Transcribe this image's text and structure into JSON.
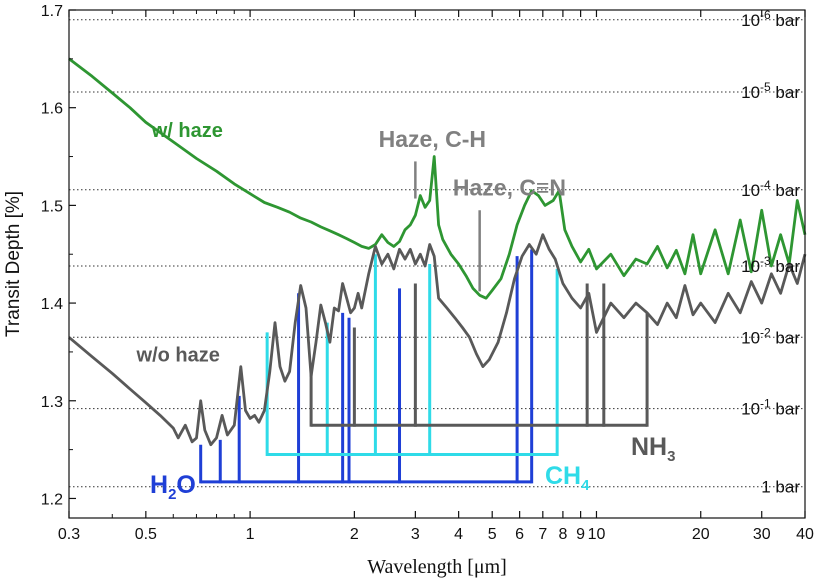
{
  "chart_data": {
    "type": "line",
    "xlabel": "Wavelength [μm]",
    "ylabel": "Transit Depth [%]",
    "xscale": "log",
    "xlim": [
      0.3,
      40
    ],
    "ylim": [
      1.18,
      1.7
    ],
    "grid": "dotted horizontal lines at pressure levels",
    "x_ticks": [
      {
        "v": 0.3,
        "label": "0.3"
      },
      {
        "v": 0.5,
        "label": "0.5"
      },
      {
        "v": 1,
        "label": "1"
      },
      {
        "v": 2,
        "label": "2"
      },
      {
        "v": 3,
        "label": "3"
      },
      {
        "v": 4,
        "label": "4"
      },
      {
        "v": 5,
        "label": "5"
      },
      {
        "v": 6,
        "label": "6"
      },
      {
        "v": 7,
        "label": "7"
      },
      {
        "v": 8,
        "label": "8"
      },
      {
        "v": 9,
        "label": "9"
      },
      {
        "v": 10,
        "label": "10"
      },
      {
        "v": 20,
        "label": "20"
      },
      {
        "v": 30,
        "label": "30"
      },
      {
        "v": 40,
        "label": "40"
      }
    ],
    "y_ticks": [
      {
        "v": 1.2,
        "label": "1.2"
      },
      {
        "v": 1.3,
        "label": "1.3"
      },
      {
        "v": 1.4,
        "label": "1.4"
      },
      {
        "v": 1.5,
        "label": "1.5"
      },
      {
        "v": 1.6,
        "label": "1.6"
      },
      {
        "v": 1.7,
        "label": "1.7"
      }
    ],
    "pressure_levels": [
      {
        "y": 1.212,
        "base": "1 bar",
        "exp": ""
      },
      {
        "y": 1.292,
        "base": "10",
        "exp": "-1",
        "unit": " bar"
      },
      {
        "y": 1.365,
        "base": "10",
        "exp": "-2",
        "unit": " bar"
      },
      {
        "y": 1.438,
        "base": "10",
        "exp": "-3",
        "unit": " bar"
      },
      {
        "y": 1.516,
        "base": "10",
        "exp": "-4",
        "unit": " bar"
      },
      {
        "y": 1.616,
        "base": "10",
        "exp": "-5",
        "unit": " bar"
      },
      {
        "y": 1.69,
        "base": "10",
        "exp": "-6",
        "unit": " bar"
      }
    ],
    "series": [
      {
        "name": "w/ haze",
        "color": "#2e9632",
        "points": [
          [
            0.3,
            1.65
          ],
          [
            0.35,
            1.632
          ],
          [
            0.4,
            1.615
          ],
          [
            0.45,
            1.6
          ],
          [
            0.5,
            1.585
          ],
          [
            0.6,
            1.565
          ],
          [
            0.7,
            1.548
          ],
          [
            0.8,
            1.535
          ],
          [
            0.9,
            1.522
          ],
          [
            1.0,
            1.512
          ],
          [
            1.1,
            1.503
          ],
          [
            1.2,
            1.498
          ],
          [
            1.3,
            1.493
          ],
          [
            1.4,
            1.487
          ],
          [
            1.5,
            1.483
          ],
          [
            1.6,
            1.478
          ],
          [
            1.7,
            1.474
          ],
          [
            1.8,
            1.47
          ],
          [
            1.9,
            1.466
          ],
          [
            2.0,
            1.462
          ],
          [
            2.1,
            1.458
          ],
          [
            2.2,
            1.456
          ],
          [
            2.3,
            1.46
          ],
          [
            2.4,
            1.47
          ],
          [
            2.5,
            1.462
          ],
          [
            2.6,
            1.458
          ],
          [
            2.7,
            1.463
          ],
          [
            2.8,
            1.475
          ],
          [
            2.9,
            1.48
          ],
          [
            3.0,
            1.49
          ],
          [
            3.1,
            1.51
          ],
          [
            3.2,
            1.498
          ],
          [
            3.3,
            1.505
          ],
          [
            3.4,
            1.55
          ],
          [
            3.5,
            1.48
          ],
          [
            3.6,
            1.465
          ],
          [
            3.8,
            1.45
          ],
          [
            4.0,
            1.44
          ],
          [
            4.2,
            1.428
          ],
          [
            4.4,
            1.415
          ],
          [
            4.6,
            1.408
          ],
          [
            4.8,
            1.405
          ],
          [
            5.0,
            1.413
          ],
          [
            5.3,
            1.425
          ],
          [
            5.6,
            1.45
          ],
          [
            5.9,
            1.48
          ],
          [
            6.2,
            1.5
          ],
          [
            6.5,
            1.515
          ],
          [
            6.8,
            1.51
          ],
          [
            7.1,
            1.5
          ],
          [
            7.5,
            1.505
          ],
          [
            7.8,
            1.515
          ],
          [
            8.1,
            1.475
          ],
          [
            8.5,
            1.458
          ],
          [
            9.0,
            1.442
          ],
          [
            9.5,
            1.455
          ],
          [
            10,
            1.435
          ],
          [
            11,
            1.45
          ],
          [
            12,
            1.428
          ],
          [
            13,
            1.445
          ],
          [
            14,
            1.44
          ],
          [
            15,
            1.458
          ],
          [
            16,
            1.436
          ],
          [
            17,
            1.454
          ],
          [
            18,
            1.43
          ],
          [
            19,
            1.47
          ],
          [
            20,
            1.43
          ],
          [
            22,
            1.475
          ],
          [
            24,
            1.43
          ],
          [
            26,
            1.485
          ],
          [
            28,
            1.432
          ],
          [
            30,
            1.495
          ],
          [
            32,
            1.438
          ],
          [
            34,
            1.47
          ],
          [
            36,
            1.44
          ],
          [
            38,
            1.505
          ],
          [
            40,
            1.47
          ]
        ]
      },
      {
        "name": "w/o haze",
        "color": "#595959",
        "points": [
          [
            0.3,
            1.365
          ],
          [
            0.35,
            1.345
          ],
          [
            0.4,
            1.328
          ],
          [
            0.45,
            1.312
          ],
          [
            0.5,
            1.298
          ],
          [
            0.55,
            1.285
          ],
          [
            0.6,
            1.272
          ],
          [
            0.62,
            1.262
          ],
          [
            0.65,
            1.275
          ],
          [
            0.68,
            1.258
          ],
          [
            0.7,
            1.262
          ],
          [
            0.72,
            1.3
          ],
          [
            0.74,
            1.27
          ],
          [
            0.77,
            1.255
          ],
          [
            0.8,
            1.262
          ],
          [
            0.83,
            1.285
          ],
          [
            0.86,
            1.265
          ],
          [
            0.9,
            1.275
          ],
          [
            0.94,
            1.335
          ],
          [
            0.97,
            1.29
          ],
          [
            1.0,
            1.282
          ],
          [
            1.03,
            1.285
          ],
          [
            1.06,
            1.278
          ],
          [
            1.1,
            1.29
          ],
          [
            1.14,
            1.33
          ],
          [
            1.18,
            1.38
          ],
          [
            1.22,
            1.335
          ],
          [
            1.26,
            1.32
          ],
          [
            1.3,
            1.33
          ],
          [
            1.35,
            1.38
          ],
          [
            1.4,
            1.418
          ],
          [
            1.45,
            1.395
          ],
          [
            1.5,
            1.325
          ],
          [
            1.55,
            1.36
          ],
          [
            1.6,
            1.398
          ],
          [
            1.65,
            1.38
          ],
          [
            1.7,
            1.36
          ],
          [
            1.75,
            1.395
          ],
          [
            1.8,
            1.392
          ],
          [
            1.85,
            1.42
          ],
          [
            1.9,
            1.405
          ],
          [
            1.95,
            1.39
          ],
          [
            2.0,
            1.395
          ],
          [
            2.05,
            1.41
          ],
          [
            2.1,
            1.395
          ],
          [
            2.2,
            1.43
          ],
          [
            2.3,
            1.458
          ],
          [
            2.4,
            1.44
          ],
          [
            2.5,
            1.45
          ],
          [
            2.6,
            1.435
          ],
          [
            2.7,
            1.455
          ],
          [
            2.8,
            1.445
          ],
          [
            2.9,
            1.455
          ],
          [
            3.0,
            1.44
          ],
          [
            3.1,
            1.45
          ],
          [
            3.2,
            1.438
          ],
          [
            3.3,
            1.46
          ],
          [
            3.4,
            1.448
          ],
          [
            3.5,
            1.405
          ],
          [
            3.7,
            1.395
          ],
          [
            3.9,
            1.385
          ],
          [
            4.1,
            1.375
          ],
          [
            4.3,
            1.365
          ],
          [
            4.5,
            1.348
          ],
          [
            4.7,
            1.335
          ],
          [
            4.9,
            1.342
          ],
          [
            5.2,
            1.36
          ],
          [
            5.5,
            1.39
          ],
          [
            5.8,
            1.425
          ],
          [
            6.1,
            1.448
          ],
          [
            6.4,
            1.46
          ],
          [
            6.7,
            1.45
          ],
          [
            7.0,
            1.47
          ],
          [
            7.3,
            1.455
          ],
          [
            7.6,
            1.445
          ],
          [
            8.0,
            1.42
          ],
          [
            8.5,
            1.405
          ],
          [
            9.0,
            1.395
          ],
          [
            9.5,
            1.41
          ],
          [
            10,
            1.37
          ],
          [
            11,
            1.4
          ],
          [
            12,
            1.385
          ],
          [
            13,
            1.4
          ],
          [
            14,
            1.39
          ],
          [
            15,
            1.378
          ],
          [
            16,
            1.4
          ],
          [
            17,
            1.385
          ],
          [
            18,
            1.418
          ],
          [
            19,
            1.388
          ],
          [
            20,
            1.4
          ],
          [
            22,
            1.38
          ],
          [
            24,
            1.41
          ],
          [
            26,
            1.39
          ],
          [
            28,
            1.422
          ],
          [
            30,
            1.4
          ],
          [
            32,
            1.43
          ],
          [
            34,
            1.41
          ],
          [
            36,
            1.44
          ],
          [
            38,
            1.42
          ],
          [
            40,
            1.45
          ]
        ]
      }
    ],
    "bands": [
      {
        "name": "H2O",
        "label_base": "H",
        "label_sub": "2",
        "label_tail": "O",
        "color": "#1f3fd6",
        "baseline": 1.217,
        "span": [
          0.72,
          6.5
        ],
        "lines": [
          [
            0.72,
            1.255
          ],
          [
            0.82,
            1.26
          ],
          [
            0.93,
            1.305
          ],
          [
            1.38,
            1.41
          ],
          [
            1.85,
            1.39
          ],
          [
            1.93,
            1.385
          ],
          [
            2.7,
            1.415
          ],
          [
            5.9,
            1.448
          ],
          [
            6.5,
            1.455
          ]
        ]
      },
      {
        "name": "CH4",
        "label_base": "CH",
        "label_sub": "4",
        "label_tail": "",
        "color": "#2fdbe8",
        "baseline": 1.245,
        "span": [
          1.12,
          7.7
        ],
        "lines": [
          [
            1.12,
            1.37
          ],
          [
            1.67,
            1.38
          ],
          [
            2.3,
            1.45
          ],
          [
            3.3,
            1.44
          ],
          [
            7.7,
            1.435
          ]
        ]
      },
      {
        "name": "NH3",
        "label_base": "NH",
        "label_sub": "3",
        "label_tail": "",
        "color": "#595959",
        "baseline": 1.275,
        "span": [
          1.5,
          14
        ],
        "lines": [
          [
            1.5,
            1.33
          ],
          [
            2.0,
            1.375
          ],
          [
            3.0,
            1.42
          ],
          [
            9.4,
            1.42
          ],
          [
            10.5,
            1.42
          ],
          [
            14,
            1.39
          ]
        ]
      }
    ],
    "annotations": [
      {
        "text": "w/ haze",
        "color": "#2e9632",
        "size": 20,
        "x": 0.52,
        "y": 1.57,
        "anchor": "start"
      },
      {
        "text": "w/o haze",
        "color": "#595959",
        "size": 20,
        "x": 0.47,
        "y": 1.34,
        "anchor": "start"
      },
      {
        "text": "Haze, C-H",
        "color": "#808080",
        "size": 23,
        "x": 2.35,
        "y": 1.56,
        "anchor": "start"
      },
      {
        "text": "Haze, C≡N",
        "color": "#808080",
        "size": 23,
        "x": 3.85,
        "y": 1.51,
        "anchor": "start"
      }
    ],
    "pointers": [
      {
        "x": 3.0,
        "y1": 1.545,
        "y2": 1.507,
        "color": "#808080"
      },
      {
        "x": 4.6,
        "y1": 1.495,
        "y2": 1.412,
        "color": "#808080"
      }
    ]
  }
}
